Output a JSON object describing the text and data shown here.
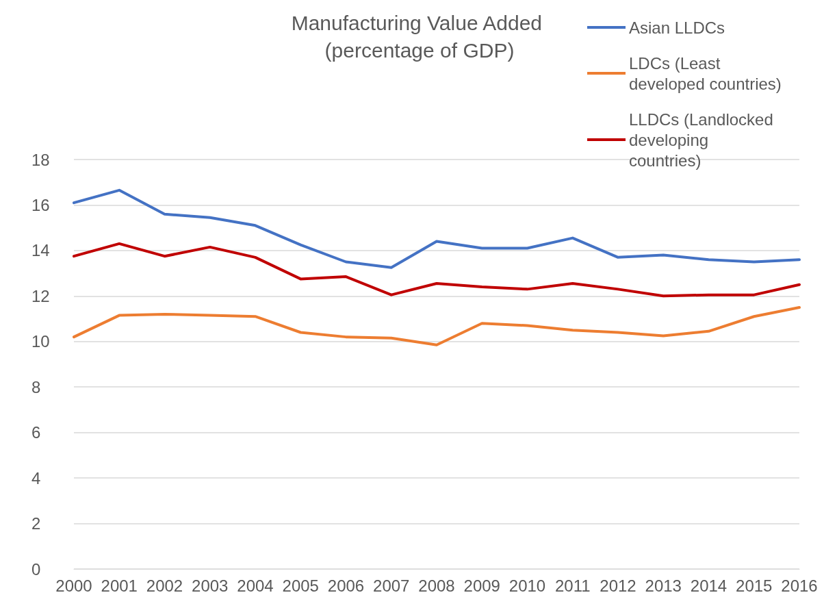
{
  "chart_data": {
    "type": "line",
    "title": "Manufacturing Value Added (percentage of GDP)",
    "categories": [
      "2000",
      "2001",
      "2002",
      "2003",
      "2004",
      "2005",
      "2006",
      "2007",
      "2008",
      "2009",
      "2010",
      "2011",
      "2012",
      "2013",
      "2014",
      "2015",
      "2016"
    ],
    "series": [
      {
        "name": "Asian LLDCs",
        "color": "#4472c4",
        "values": [
          16.1,
          16.65,
          15.6,
          15.45,
          15.1,
          14.25,
          13.5,
          13.25,
          14.4,
          14.1,
          14.1,
          14.55,
          13.7,
          13.8,
          13.6,
          13.5,
          13.6
        ]
      },
      {
        "name": "LDCs (Least developed countries)",
        "color": "#ed7d31",
        "values": [
          10.2,
          11.15,
          11.2,
          11.15,
          11.1,
          10.4,
          10.2,
          10.15,
          9.85,
          10.8,
          10.7,
          10.5,
          10.4,
          10.25,
          10.45,
          11.1,
          11.5
        ]
      },
      {
        "name": "LLDCs (Landlocked developing countries)",
        "color": "#c00000",
        "values": [
          13.75,
          14.3,
          13.75,
          14.15,
          13.7,
          12.75,
          12.85,
          12.05,
          12.55,
          12.4,
          12.3,
          12.55,
          12.3,
          12.0,
          12.05,
          12.05,
          12.5
        ]
      }
    ],
    "ylim": [
      0,
      18
    ],
    "yticks": [
      0,
      2,
      4,
      6,
      8,
      10,
      12,
      14,
      16,
      18
    ],
    "grid": "y",
    "legend": "top right",
    "marker": "none",
    "line_style": "solid"
  }
}
